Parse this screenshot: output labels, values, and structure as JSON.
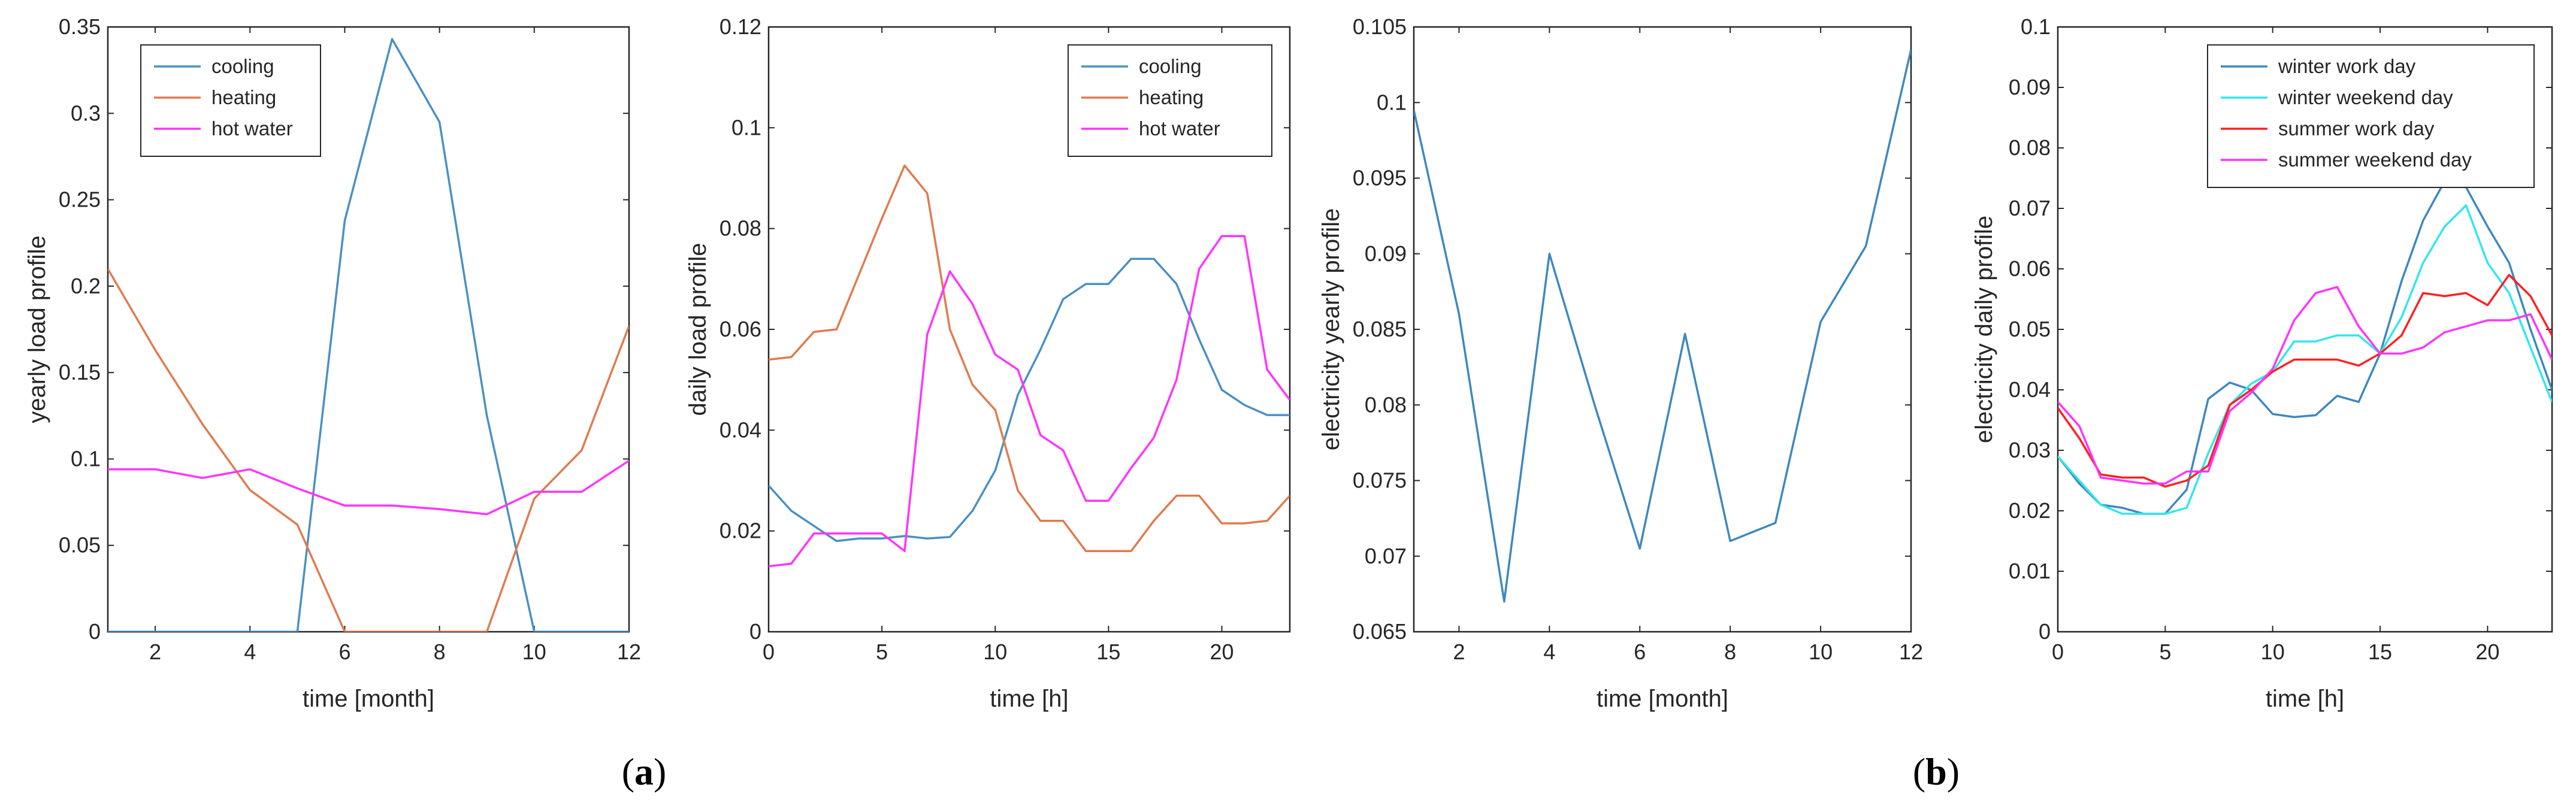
{
  "panel_labels": {
    "a": "a",
    "b": "b"
  },
  "colors": {
    "cooling": "#4a90c4",
    "heating": "#e07b4f",
    "hot_water": "#ff33ff",
    "electricity": "#3d88c0",
    "winter_work_day": "#3d88c0",
    "winter_weekend_day": "#33e6ee",
    "summer_work_day": "#ff2020",
    "summer_weekend_day": "#ff33ff"
  },
  "chart_data": [
    {
      "id": "yearly-load",
      "type": "line",
      "xlabel": "time  [month]",
      "ylabel": "yearly load profile",
      "xlim": [
        1,
        12
      ],
      "ylim": [
        0,
        0.35
      ],
      "xticks": [
        2,
        4,
        6,
        8,
        10,
        12
      ],
      "yticks": [
        0,
        0.05,
        0.1,
        0.15,
        0.2,
        0.25,
        0.3,
        0.35
      ],
      "ytick_labels": [
        "0",
        "0.05",
        "0.1",
        "0.15",
        "0.2",
        "0.25",
        "0.3",
        "0.35"
      ],
      "legend_position": "top-left",
      "x": [
        1,
        2,
        3,
        4,
        5,
        6,
        7,
        8,
        9,
        10,
        11,
        12
      ],
      "series": [
        {
          "name": "cooling",
          "color_key": "cooling",
          "values": [
            0,
            0,
            0,
            0,
            0,
            0.238,
            0.343,
            0.295,
            0.125,
            0,
            0,
            0
          ]
        },
        {
          "name": "heating",
          "color_key": "heating",
          "values": [
            0.21,
            0.163,
            0.12,
            0.082,
            0.062,
            0,
            0,
            0,
            0,
            0.077,
            0.105,
            0.177
          ]
        },
        {
          "name": "hot water",
          "color_key": "hot_water",
          "values": [
            0.094,
            0.094,
            0.089,
            0.094,
            0.083,
            0.073,
            0.073,
            0.071,
            0.068,
            0.081,
            0.081,
            0.099
          ]
        }
      ]
    },
    {
      "id": "daily-load",
      "type": "line",
      "xlabel": "time  [h]",
      "ylabel": "daily load profile",
      "xlim": [
        0,
        23
      ],
      "ylim": [
        0,
        0.12
      ],
      "xticks": [
        0,
        5,
        10,
        15,
        20
      ],
      "yticks": [
        0,
        0.02,
        0.04,
        0.06,
        0.08,
        0.1,
        0.12
      ],
      "ytick_labels": [
        "0",
        "0.02",
        "0.04",
        "0.06",
        "0.08",
        "0.1",
        "0.12"
      ],
      "legend_position": "top-right",
      "x": [
        0,
        1,
        2,
        3,
        4,
        5,
        6,
        7,
        8,
        9,
        10,
        11,
        12,
        13,
        14,
        15,
        16,
        17,
        18,
        19,
        20,
        21,
        22,
        23
      ],
      "series": [
        {
          "name": "cooling",
          "color_key": "cooling",
          "values": [
            0.029,
            0.024,
            0.021,
            0.018,
            0.0185,
            0.0185,
            0.019,
            0.0185,
            0.0188,
            0.024,
            0.032,
            0.047,
            0.056,
            0.066,
            0.069,
            0.069,
            0.074,
            0.074,
            0.069,
            0.058,
            0.048,
            0.045,
            0.043,
            0.043
          ]
        },
        {
          "name": "heating",
          "color_key": "heating",
          "values": [
            0.054,
            0.0545,
            0.0595,
            0.06,
            0.071,
            0.082,
            0.0925,
            0.087,
            0.06,
            0.049,
            0.044,
            0.028,
            0.022,
            0.022,
            0.016,
            0.016,
            0.016,
            0.022,
            0.027,
            0.027,
            0.0215,
            0.0215,
            0.022,
            0.027
          ]
        },
        {
          "name": "hot water",
          "color_key": "hot_water",
          "values": [
            0.013,
            0.0135,
            0.0195,
            0.0195,
            0.0195,
            0.0195,
            0.016,
            0.059,
            0.0715,
            0.065,
            0.055,
            0.052,
            0.039,
            0.036,
            0.026,
            0.026,
            0.0325,
            0.0385,
            0.05,
            0.072,
            0.0785,
            0.0785,
            0.052,
            0.046
          ]
        }
      ]
    },
    {
      "id": "electricity-yearly",
      "type": "line",
      "xlabel": "time  [month]",
      "ylabel": "electricity yearly profile",
      "xlim": [
        1,
        12
      ],
      "ylim": [
        0.065,
        0.105
      ],
      "xticks": [
        2,
        4,
        6,
        8,
        10,
        12
      ],
      "yticks": [
        0.065,
        0.07,
        0.075,
        0.08,
        0.085,
        0.09,
        0.095,
        0.1,
        0.105
      ],
      "ytick_labels": [
        "0.065",
        "0.07",
        "0.075",
        "0.08",
        "0.085",
        "0.09",
        "0.095",
        "0.1",
        "0.105"
      ],
      "legend_position": "none",
      "x": [
        1,
        2,
        3,
        4,
        5,
        6,
        7,
        8,
        9,
        10,
        11,
        12
      ],
      "series": [
        {
          "name": "electricity",
          "color_key": "electricity",
          "values": [
            0.0995,
            0.086,
            0.067,
            0.09,
            0.08,
            0.0705,
            0.0847,
            0.071,
            0.0722,
            0.0855,
            0.0905,
            0.1035
          ]
        }
      ]
    },
    {
      "id": "electricity-daily",
      "type": "line",
      "xlabel": "time  [h]",
      "ylabel": "electricity daily profile",
      "xlim": [
        0,
        23
      ],
      "ylim": [
        0,
        0.1
      ],
      "xticks": [
        0,
        5,
        10,
        15,
        20
      ],
      "yticks": [
        0,
        0.01,
        0.02,
        0.03,
        0.04,
        0.05,
        0.06,
        0.07,
        0.08,
        0.09,
        0.1
      ],
      "ytick_labels": [
        "0",
        "0.01",
        "0.02",
        "0.03",
        "0.04",
        "0.05",
        "0.06",
        "0.07",
        "0.08",
        "0.09",
        "0.1"
      ],
      "legend_position": "top-right",
      "x": [
        0,
        1,
        2,
        3,
        4,
        5,
        6,
        7,
        8,
        9,
        10,
        11,
        12,
        13,
        14,
        15,
        16,
        17,
        18,
        19,
        20,
        21,
        22,
        23
      ],
      "series": [
        {
          "name": "winter work day",
          "color_key": "winter_work_day",
          "values": [
            0.029,
            0.0245,
            0.021,
            0.0205,
            0.0195,
            0.0195,
            0.0235,
            0.0385,
            0.0412,
            0.04,
            0.036,
            0.0355,
            0.0358,
            0.039,
            0.038,
            0.046,
            0.058,
            0.068,
            0.0745,
            0.0735,
            0.067,
            0.061,
            0.05,
            0.04
          ]
        },
        {
          "name": "winter weekend day",
          "color_key": "winter_weekend_day",
          "values": [
            0.029,
            0.025,
            0.021,
            0.0195,
            0.0195,
            0.0195,
            0.0205,
            0.0295,
            0.0375,
            0.041,
            0.043,
            0.048,
            0.048,
            0.049,
            0.049,
            0.046,
            0.052,
            0.061,
            0.067,
            0.0705,
            0.061,
            0.056,
            0.047,
            0.038
          ]
        },
        {
          "name": "summer work day",
          "color_key": "summer_work_day",
          "values": [
            0.037,
            0.032,
            0.026,
            0.0255,
            0.0255,
            0.024,
            0.025,
            0.0275,
            0.0375,
            0.04,
            0.043,
            0.045,
            0.045,
            0.045,
            0.044,
            0.046,
            0.049,
            0.056,
            0.0555,
            0.056,
            0.054,
            0.059,
            0.0555,
            0.049
          ]
        },
        {
          "name": "summer weekend day",
          "color_key": "summer_weekend_day",
          "values": [
            0.038,
            0.034,
            0.0255,
            0.025,
            0.0245,
            0.0245,
            0.0265,
            0.0265,
            0.0365,
            0.0395,
            0.0435,
            0.0515,
            0.056,
            0.057,
            0.0505,
            0.046,
            0.046,
            0.047,
            0.0495,
            0.0505,
            0.0515,
            0.0515,
            0.0525,
            0.045
          ]
        }
      ]
    }
  ]
}
